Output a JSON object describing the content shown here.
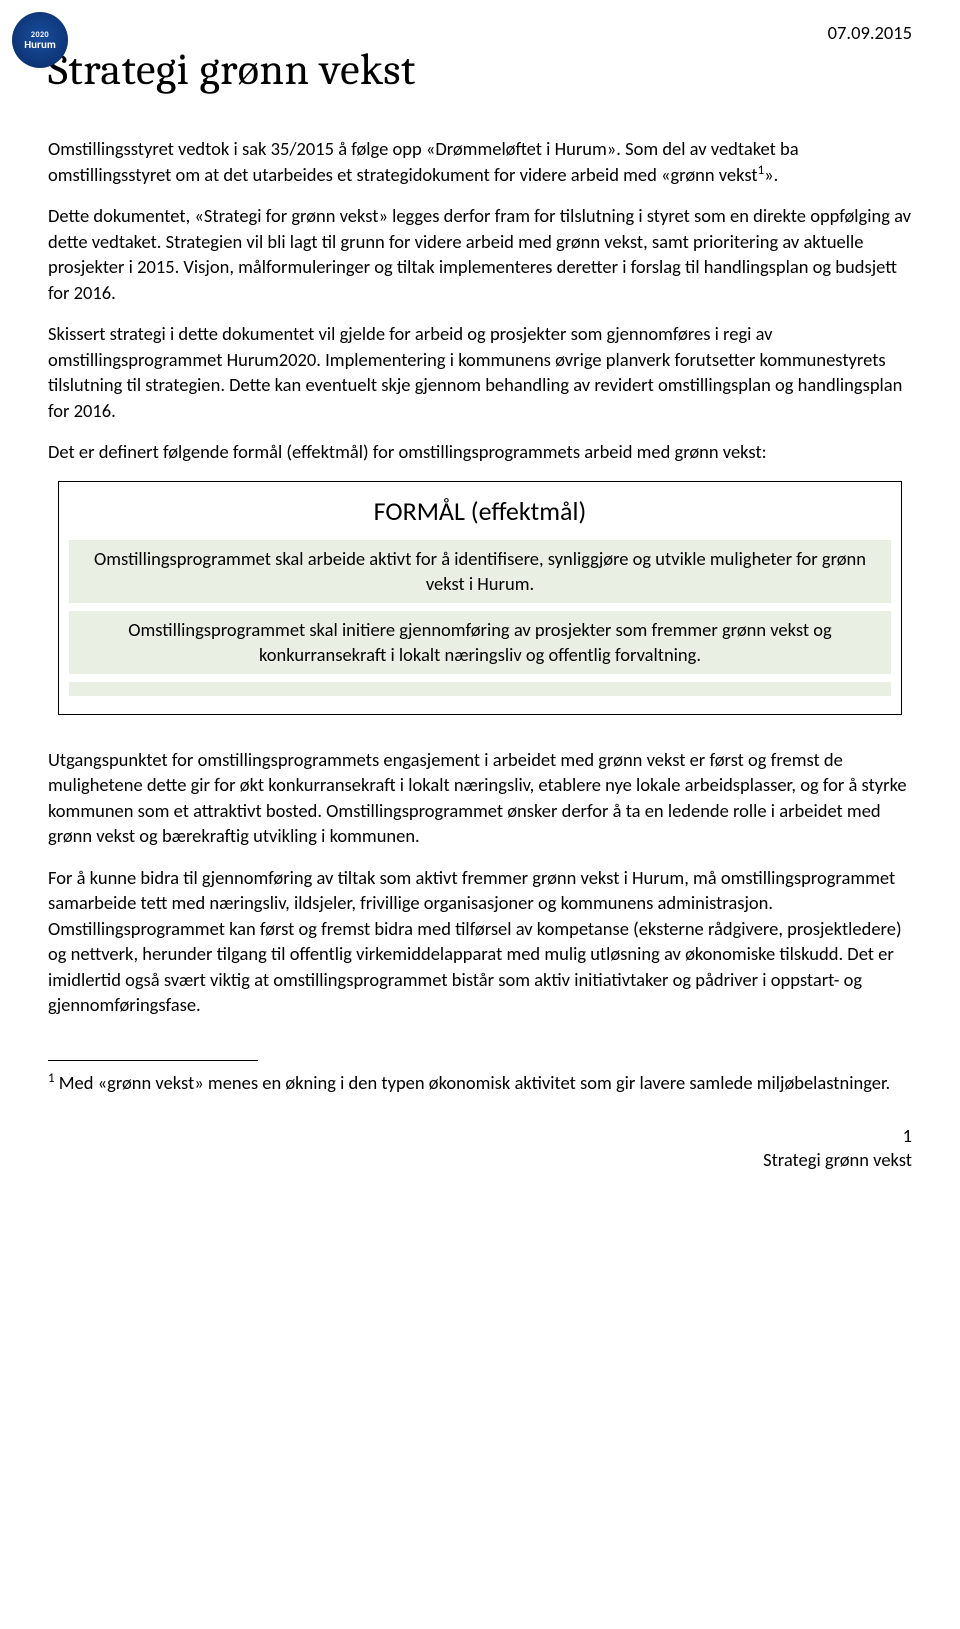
{
  "logo": {
    "year": "2020",
    "name": "Hurum"
  },
  "date": "07.09.2015",
  "title": "Strategi grønn vekst",
  "paras": {
    "p1": "Omstillingsstyret vedtok i sak 35/2015 å følge opp «Drømmeløftet i Hurum». Som del av vedtaket ba omstillingsstyret om at det utarbeides et strategidokument for videre arbeid med «grønn vekst",
    "p1_tail": "».",
    "p2": "Dette dokumentet, «Strategi for grønn vekst» legges derfor fram for tilslutning i styret som en direkte oppfølging av dette vedtaket. Strategien vil bli lagt til grunn for videre arbeid med grønn vekst, samt prioritering av aktuelle prosjekter i 2015. Visjon, målformuleringer og tiltak implementeres deretter i forslag til handlingsplan og budsjett for 2016.",
    "p3": "Skissert strategi i dette dokumentet vil gjelde for arbeid og prosjekter som gjennomføres i regi av omstillingsprogrammet Hurum2020. Implementering i kommunens øvrige planverk forutsetter kommunestyrets tilslutning til strategien. Dette kan eventuelt skje gjennom behandling av revidert omstillingsplan og handlingsplan for 2016.",
    "p4": "Det er definert følgende formål (effektmål) for omstillingsprogrammets arbeid med grønn vekst:",
    "p5": "Utgangspunktet for omstillingsprogrammets engasjement i arbeidet med grønn vekst er først og fremst de mulighetene dette gir for økt konkurransekraft i lokalt næringsliv, etablere nye lokale arbeidsplasser, og for å styrke kommunen som et attraktivt bosted. Omstillingsprogrammet ønsker derfor å ta en ledende rolle i arbeidet med grønn vekst og bærekraftig utvikling i kommunen.",
    "p6": "For å kunne bidra til gjennomføring av tiltak som aktivt fremmer grønn vekst i Hurum, må omstillingsprogrammet samarbeide tett med næringsliv, ildsjeler, frivillige organisasjoner og kommunens administrasjon. Omstillingsprogrammet kan først og fremst bidra med tilførsel av kompetanse (eksterne rådgivere, prosjektledere) og nettverk, herunder tilgang til offentlig virkemiddelapparat med mulig utløsning av økonomiske tilskudd. Det er imidlertid også svært viktig at omstillingsprogrammet bistår som aktiv initiativtaker og pådriver i oppstart- og gjennomføringsfase."
  },
  "formal": {
    "heading": "FORMÅL (effektmål)",
    "band1": "Omstillingsprogrammet skal arbeide aktivt for å identifisere, synliggjøre og utvikle muligheter for grønn vekst i Hurum.",
    "band2": "Omstillingsprogrammet skal initiere gjennomføring av prosjekter som fremmer grønn vekst og konkurransekraft i lokalt næringsliv og offentlig forvaltning."
  },
  "footnote": {
    "marker": "1",
    "text": " Med «grønn vekst» menes en økning i den typen økonomisk aktivitet som gir lavere samlede miljøbelastninger."
  },
  "footer": {
    "page": "1",
    "doc": "Strategi grønn vekst"
  },
  "colors": {
    "band_bg": "#e9efe2",
    "logo_bg": "#0d3576",
    "text": "#000000"
  }
}
